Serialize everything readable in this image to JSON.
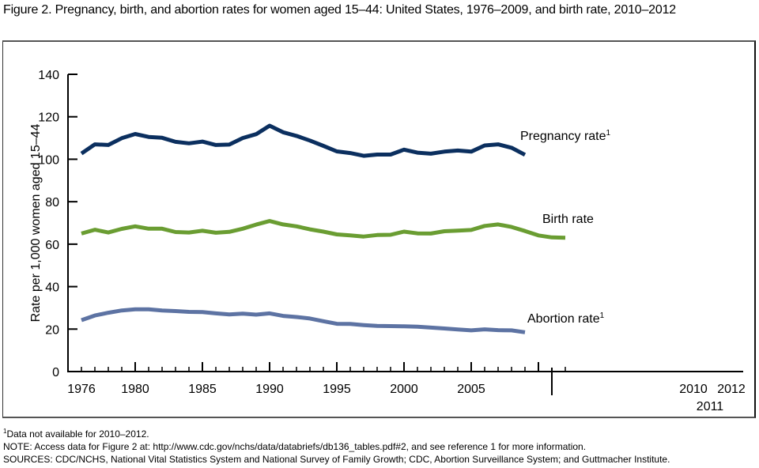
{
  "title": "Figure 2. Pregnancy, birth, and abortion rates for women aged 15–44: United States, 1976–2009, and birth rate, 2010–2012",
  "colors": {
    "pregnancy": "#0b2f5f",
    "birth": "#6a9d32",
    "abortion": "#5d73a3",
    "axis": "#000000",
    "frame": "#555555"
  },
  "footnotes": {
    "note1_marker": "1",
    "note1_text": "Data not available for 2010–2012.",
    "note": "NOTE: Access data for Figure 2 at: http://www.cdc.gov/nchs/data/databriefs/db136_tables.pdf#2, and see reference 1 for more information.",
    "sources": "SOURCES: CDC/NCHS, National Vital Statistics System and National Survey of Family Growth; CDC, Abortion Surveillance System; and Guttmacher Institute."
  },
  "chart_data": {
    "type": "line",
    "title": "Figure 2. Pregnancy, birth, and abortion rates for women aged 15–44: United States, 1976–2009, and birth rate, 2010–2012",
    "xlabel": "",
    "ylabel": "Rate per 1,000 women aged 15–44",
    "ylim": [
      0,
      140
    ],
    "yticks": [
      0,
      20,
      40,
      60,
      80,
      100,
      120,
      140
    ],
    "xticks_labels": [
      "1976",
      "1980",
      "1985",
      "1990",
      "1995",
      "2000",
      "2005",
      "2010",
      "2011",
      "2012"
    ],
    "xlim": [
      1976,
      2012
    ],
    "grid": false,
    "legend_position": "inline labels",
    "x": [
      1976,
      1977,
      1978,
      1979,
      1980,
      1981,
      1982,
      1983,
      1984,
      1985,
      1986,
      1987,
      1988,
      1989,
      1990,
      1991,
      1992,
      1993,
      1994,
      1995,
      1996,
      1997,
      1998,
      1999,
      2000,
      2001,
      2002,
      2003,
      2004,
      2005,
      2006,
      2007,
      2008,
      2009,
      2010,
      2011,
      2012
    ],
    "series": [
      {
        "name": "Pregnancy rate",
        "label": "Pregnancy rate",
        "footnote": "1",
        "values": [
          102.7,
          107.0,
          106.7,
          109.9,
          111.9,
          110.5,
          110.1,
          108.2,
          107.5,
          108.3,
          106.7,
          106.9,
          110.0,
          111.8,
          115.8,
          112.7,
          111.0,
          108.8,
          106.3,
          103.7,
          102.9,
          101.6,
          102.2,
          102.2,
          104.5,
          103.1,
          102.6,
          103.6,
          104.1,
          103.6,
          106.5,
          107.0,
          105.4,
          102.1,
          null,
          null,
          null
        ]
      },
      {
        "name": "Birth rate",
        "label": "Birth rate",
        "footnote": "",
        "values": [
          65.0,
          66.8,
          65.5,
          67.2,
          68.4,
          67.3,
          67.3,
          65.7,
          65.5,
          66.3,
          65.4,
          65.8,
          67.3,
          69.2,
          70.9,
          69.3,
          68.4,
          67.0,
          65.9,
          64.6,
          64.1,
          63.6,
          64.3,
          64.4,
          65.9,
          65.1,
          65.0,
          66.1,
          66.4,
          66.7,
          68.6,
          69.3,
          68.1,
          66.2,
          64.1,
          63.2,
          63.0
        ]
      },
      {
        "name": "Abortion rate",
        "label": "Abortion rate",
        "footnote": "1",
        "values": [
          24.2,
          26.4,
          27.7,
          28.8,
          29.3,
          29.3,
          28.8,
          28.5,
          28.1,
          28.0,
          27.4,
          26.9,
          27.3,
          26.8,
          27.4,
          26.2,
          25.7,
          25.0,
          23.7,
          22.5,
          22.4,
          21.9,
          21.5,
          21.4,
          21.3,
          21.1,
          20.7,
          20.3,
          19.8,
          19.4,
          19.9,
          19.5,
          19.4,
          18.5,
          null,
          null,
          null
        ]
      }
    ]
  }
}
